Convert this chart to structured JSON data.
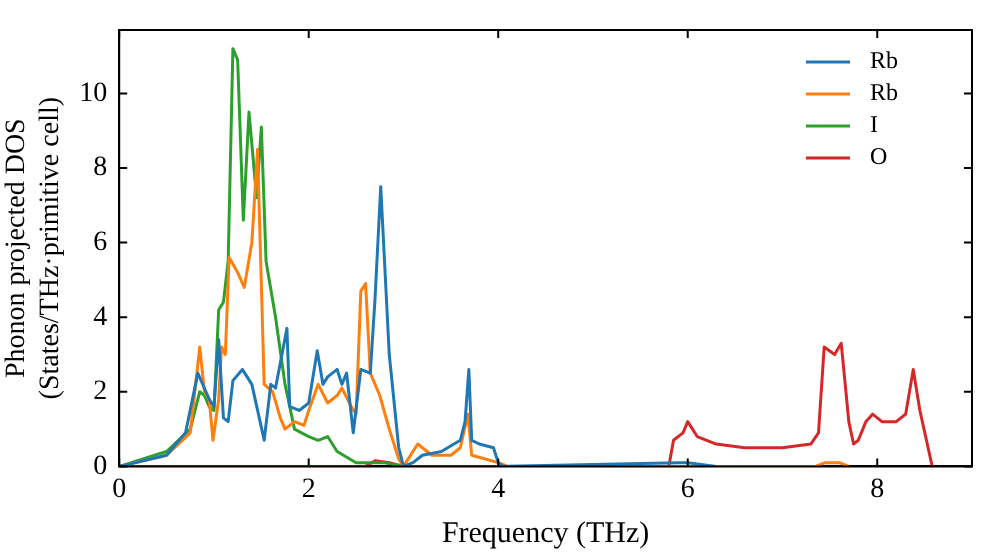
{
  "chart_data": {
    "type": "line",
    "xlabel": "Frequency (THz)",
    "ylabel": "Phonon projected DOS\n(States/THz·primitive cell)",
    "xlim": [
      0,
      9
    ],
    "ylim": [
      0,
      11.7
    ],
    "xticks": [
      0,
      2,
      4,
      6,
      8
    ],
    "yticks": [
      0,
      2,
      4,
      6,
      8,
      10
    ],
    "grid": false,
    "legend": "top right",
    "marker": "none",
    "line_style": "solid",
    "series": [
      {
        "name": "Rb",
        "color": "#1f77b4",
        "x": [
          0,
          0.5,
          0.7,
          0.83,
          0.95,
          1.0,
          1.05,
          1.1,
          1.15,
          1.2,
          1.3,
          1.4,
          1.53,
          1.6,
          1.65,
          1.77,
          1.8,
          1.9,
          2.0,
          2.09,
          2.15,
          2.2,
          2.3,
          2.35,
          2.4,
          2.47,
          2.55,
          2.65,
          2.7,
          2.76,
          2.85,
          2.95,
          3.0,
          3.1,
          3.2,
          3.4,
          3.6,
          3.65,
          3.69,
          3.72,
          3.8,
          3.95,
          4.0,
          4.05,
          5.9,
          6.0,
          6.3
        ],
        "values": [
          0,
          0.3,
          0.9,
          2.5,
          1.8,
          1.6,
          3.4,
          1.3,
          1.2,
          2.3,
          2.6,
          2.2,
          0.7,
          2.2,
          2.1,
          3.7,
          1.6,
          1.5,
          1.7,
          3.1,
          2.2,
          2.4,
          2.6,
          2.2,
          2.5,
          0.9,
          2.6,
          2.5,
          4.5,
          7.5,
          3.0,
          0.5,
          0,
          0.1,
          0.3,
          0.4,
          0.7,
          1.2,
          2.6,
          0.7,
          0.6,
          0.5,
          0.1,
          0,
          0.1,
          0.1,
          0
        ]
      },
      {
        "name": "Rb",
        "color": "#ff7f0e",
        "x": [
          0,
          0.5,
          0.75,
          0.85,
          0.9,
          0.95,
          0.99,
          1.05,
          1.08,
          1.12,
          1.16,
          1.25,
          1.32,
          1.4,
          1.46,
          1.53,
          1.62,
          1.7,
          1.75,
          1.85,
          1.95,
          2.0,
          2.1,
          2.2,
          2.3,
          2.35,
          2.45,
          2.5,
          2.55,
          2.6,
          2.65,
          2.75,
          2.85,
          2.95,
          3.0,
          3.15,
          3.3,
          3.5,
          3.6,
          3.68,
          3.72,
          4.0,
          4.1,
          7.35,
          7.45,
          7.6,
          7.7
        ],
        "values": [
          0,
          0.3,
          0.9,
          3.2,
          2.0,
          1.8,
          0.7,
          1.8,
          3.2,
          3.0,
          5.6,
          5.2,
          4.8,
          6.0,
          8.5,
          2.2,
          2.0,
          1.3,
          1.0,
          1.2,
          1.1,
          1.5,
          2.2,
          1.7,
          1.9,
          2.1,
          1.6,
          1.4,
          4.7,
          4.9,
          2.5,
          1.9,
          1.0,
          0.2,
          0,
          0.6,
          0.3,
          0.3,
          0.5,
          1.4,
          0.3,
          0.1,
          0,
          0,
          0.1,
          0.1,
          0
        ]
      },
      {
        "name": "I",
        "color": "#2ca02c",
        "x": [
          0,
          0.5,
          0.75,
          0.85,
          0.9,
          0.95,
          1.0,
          1.05,
          1.1,
          1.15,
          1.2,
          1.25,
          1.31,
          1.37,
          1.45,
          1.5,
          1.55,
          1.65,
          1.75,
          1.85,
          2.0,
          2.1,
          2.2,
          2.3,
          2.5,
          2.8,
          3.0
        ],
        "values": [
          0,
          0.4,
          1.0,
          2.0,
          1.9,
          1.6,
          1.5,
          4.2,
          4.4,
          5.5,
          11.2,
          10.9,
          6.6,
          9.5,
          7.2,
          9.1,
          5.5,
          4.0,
          2.2,
          1.0,
          0.8,
          0.7,
          0.8,
          0.4,
          0.1,
          0.1,
          0
        ]
      },
      {
        "name": "O",
        "color": "#d62728",
        "x": [
          0,
          2.6,
          2.7,
          2.85,
          3.0,
          5.8,
          5.85,
          5.95,
          6.0,
          6.1,
          6.3,
          6.6,
          7.0,
          7.3,
          7.38,
          7.44,
          7.55,
          7.62,
          7.7,
          7.75,
          7.8,
          7.88,
          7.95,
          8.05,
          8.2,
          8.3,
          8.38,
          8.45,
          8.58
        ],
        "values": [
          0,
          0,
          0.15,
          0.1,
          0,
          0,
          0.7,
          0.9,
          1.2,
          0.8,
          0.6,
          0.5,
          0.5,
          0.6,
          0.9,
          3.2,
          3.0,
          3.3,
          1.2,
          0.6,
          0.7,
          1.2,
          1.4,
          1.2,
          1.2,
          1.4,
          2.6,
          1.5,
          0
        ]
      }
    ]
  }
}
